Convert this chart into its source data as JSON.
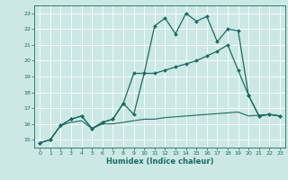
{
  "xlabel": "Humidex (Indice chaleur)",
  "bg_color": "#cce8e4",
  "grid_color": "#ffffff",
  "line_color": "#1a6b60",
  "xmin": -0.5,
  "xmax": 23.5,
  "ymin": 14.5,
  "ymax": 23.5,
  "yticks": [
    15,
    16,
    17,
    18,
    19,
    20,
    21,
    22,
    23
  ],
  "xticks": [
    0,
    1,
    2,
    3,
    4,
    5,
    6,
    7,
    8,
    9,
    10,
    11,
    12,
    13,
    14,
    15,
    16,
    17,
    18,
    19,
    20,
    21,
    22,
    23
  ],
  "series": [
    {
      "x": [
        0,
        1,
        2,
        3,
        4,
        5,
        6,
        7,
        8,
        9,
        10,
        11,
        12,
        13,
        14,
        15,
        16,
        17,
        18,
        19,
        20,
        21,
        22,
        23
      ],
      "y": [
        14.8,
        15.0,
        15.9,
        16.3,
        16.5,
        15.7,
        16.1,
        16.3,
        17.3,
        16.6,
        19.2,
        22.2,
        22.7,
        21.7,
        23.0,
        22.5,
        22.8,
        21.2,
        22.0,
        21.9,
        17.8,
        16.5,
        16.6,
        16.5
      ],
      "marker": "D",
      "markersize": 2.0,
      "linewidth": 0.9
    },
    {
      "x": [
        0,
        1,
        2,
        3,
        4,
        5,
        6,
        7,
        8,
        9,
        10,
        11,
        12,
        13,
        14,
        15,
        16,
        17,
        18,
        19,
        20,
        21,
        22,
        23
      ],
      "y": [
        14.8,
        15.0,
        15.9,
        16.3,
        16.5,
        15.7,
        16.1,
        16.3,
        17.3,
        19.2,
        19.2,
        19.2,
        19.4,
        19.6,
        19.8,
        20.0,
        20.3,
        20.6,
        21.0,
        19.4,
        17.8,
        16.5,
        16.6,
        16.5
      ],
      "marker": "D",
      "markersize": 2.0,
      "linewidth": 0.9
    },
    {
      "x": [
        0,
        1,
        2,
        3,
        4,
        5,
        6,
        7,
        8,
        9,
        10,
        11,
        12,
        13,
        14,
        15,
        16,
        17,
        18,
        19,
        20,
        21,
        22,
        23
      ],
      "y": [
        14.8,
        15.0,
        15.9,
        16.1,
        16.2,
        15.7,
        16.0,
        16.0,
        16.1,
        16.2,
        16.3,
        16.3,
        16.4,
        16.45,
        16.5,
        16.55,
        16.6,
        16.65,
        16.7,
        16.75,
        16.5,
        16.55,
        16.6,
        16.5
      ],
      "marker": null,
      "markersize": 0,
      "linewidth": 0.8
    }
  ]
}
